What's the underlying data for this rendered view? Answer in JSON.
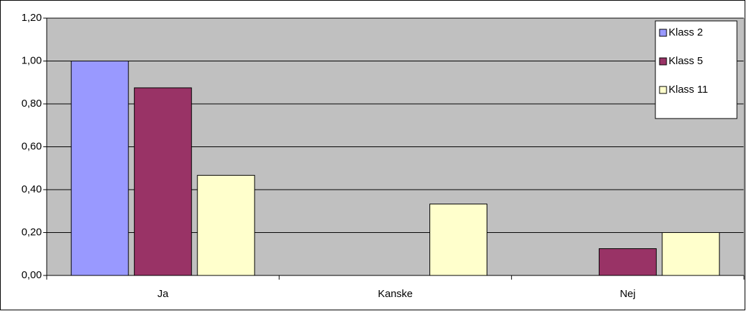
{
  "chart_data": {
    "type": "bar",
    "categories": [
      "Ja",
      "Kanske",
      "Nej"
    ],
    "series": [
      {
        "name": "Klass 2",
        "color": "#9999ff",
        "values": [
          1.0,
          0,
          0
        ]
      },
      {
        "name": "Klass 5",
        "color": "#993366",
        "values": [
          0.875,
          0,
          0.125
        ]
      },
      {
        "name": "Klass 11",
        "color": "#ffffcc",
        "values": [
          0.467,
          0.333,
          0.2
        ]
      }
    ],
    "ylim": [
      0,
      1.2
    ],
    "yticks": [
      {
        "value": 0,
        "label": "0,00"
      },
      {
        "value": 0.2,
        "label": "0,20"
      },
      {
        "value": 0.4,
        "label": "0,40"
      },
      {
        "value": 0.6,
        "label": "0,60"
      },
      {
        "value": 0.8,
        "label": "0,80"
      },
      {
        "value": 1.0,
        "label": "1,00"
      },
      {
        "value": 1.2,
        "label": "1,20"
      }
    ],
    "grid": true,
    "legend": "top-right",
    "plot_background": "#c0c0c0"
  }
}
